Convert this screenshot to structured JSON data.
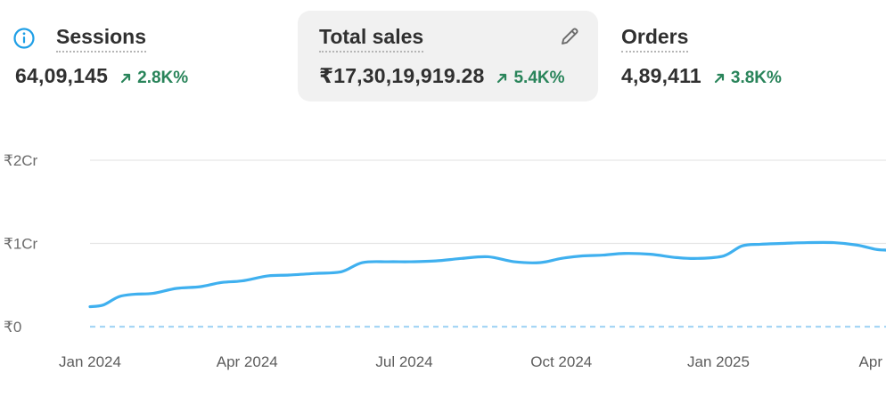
{
  "metrics": {
    "sessions": {
      "title": "Sessions",
      "value": "64,09,145",
      "change": "2.8K%",
      "icon": "info-icon"
    },
    "total_sales": {
      "title": "Total sales",
      "value": "₹17,30,19,919.28",
      "change": "5.4K%",
      "icon": "pencil-icon",
      "selected": true
    },
    "orders": {
      "title": "Orders",
      "value": "4,89,411",
      "change": "3.8K%"
    }
  },
  "colors": {
    "accent_line": "#3fb0ef",
    "comparison_line": "#a6d6f5",
    "positive": "#29845a",
    "info": "#1f9fe6"
  },
  "chart_data": {
    "type": "line",
    "title": "",
    "xlabel": "",
    "ylabel": "",
    "y_ticks": [
      "₹0",
      "₹1Cr",
      "₹2Cr"
    ],
    "y_tick_values": [
      0,
      1,
      2
    ],
    "ylim": [
      0,
      2
    ],
    "y_unit": "Cr",
    "x_ticks": [
      "Jan 2024",
      "Apr 2024",
      "Jul 2024",
      "Oct 2024",
      "Jan 2025",
      "Apr"
    ],
    "x_tick_months": [
      0,
      3,
      6,
      9,
      12,
      15
    ],
    "xlim_months": [
      0,
      15.2
    ],
    "grid": true,
    "series": [
      {
        "style": "solid",
        "x_months": [
          0,
          0.25,
          0.55,
          0.85,
          1.2,
          1.65,
          2.1,
          2.5,
          2.9,
          3.4,
          3.8,
          4.3,
          4.8,
          5.2,
          5.7,
          6.1,
          6.6,
          7.1,
          7.6,
          8.1,
          8.6,
          9.0,
          9.4,
          9.8,
          10.2,
          10.7,
          11.2,
          11.6,
          12.1,
          12.45,
          12.8,
          13.2,
          13.7,
          14.2,
          14.65,
          15.0,
          15.2
        ],
        "values": [
          0.24,
          0.26,
          0.36,
          0.39,
          0.4,
          0.46,
          0.48,
          0.53,
          0.55,
          0.61,
          0.62,
          0.64,
          0.66,
          0.77,
          0.78,
          0.78,
          0.79,
          0.82,
          0.84,
          0.78,
          0.77,
          0.82,
          0.85,
          0.86,
          0.88,
          0.87,
          0.83,
          0.82,
          0.85,
          0.97,
          0.99,
          1.0,
          1.01,
          1.01,
          0.98,
          0.93,
          0.92
        ]
      },
      {
        "style": "dashed",
        "x_months": [
          0,
          15.2
        ],
        "values": [
          0,
          0
        ]
      }
    ]
  }
}
